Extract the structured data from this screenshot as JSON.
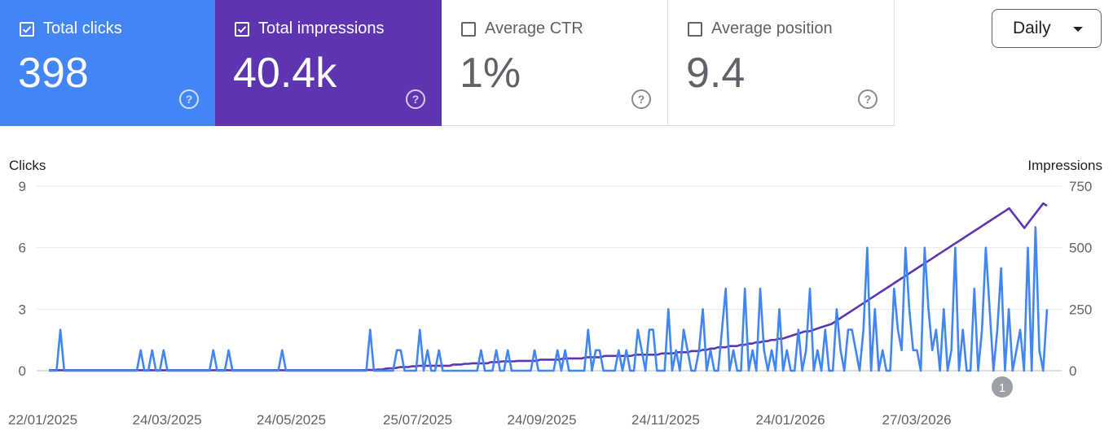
{
  "cards": [
    {
      "label": "Total clicks",
      "value": "398",
      "checked": true
    },
    {
      "label": "Total impressions",
      "value": "40.4k",
      "checked": true
    },
    {
      "label": "Average CTR",
      "value": "1%",
      "checked": false
    },
    {
      "label": "Average position",
      "value": "9.4",
      "checked": false
    }
  ],
  "help_symbol": "?",
  "granularity_select": {
    "value": "Daily"
  },
  "annotation": {
    "label": "1",
    "x": "2026-05-05"
  },
  "colors": {
    "clicks": "#4285f4",
    "impressions": "#5e35b1",
    "grid": "#e8eaed",
    "text": "#5f6368"
  },
  "chart_data": {
    "type": "line",
    "x_start": "2025-01-22",
    "x_end": "2026-05-27",
    "x_ticks": [
      "22/01/2025",
      "24/03/2025",
      "24/05/2025",
      "25/07/2025",
      "24/09/2025",
      "24/11/2025",
      "24/01/2026",
      "27/03/2026"
    ],
    "y_left": {
      "label": "Clicks",
      "ticks": [
        "0",
        "3",
        "6",
        "9"
      ],
      "lim": [
        0,
        9
      ]
    },
    "y_right": {
      "label": "Impressions",
      "ticks": [
        "0",
        "250",
        "500",
        "750"
      ],
      "lim": [
        0,
        750
      ]
    },
    "grid": true,
    "series": [
      {
        "name": "Clicks",
        "axis": "left",
        "sampling": "approximately every 3 days",
        "values": [
          0,
          0,
          0,
          2,
          0,
          0,
          0,
          0,
          0,
          0,
          0,
          0,
          0,
          0,
          0,
          0,
          0,
          0,
          0,
          0,
          0,
          0,
          0,
          0,
          1,
          0,
          0,
          1,
          0,
          0,
          1,
          0,
          0,
          0,
          0,
          0,
          0,
          0,
          0,
          0,
          0,
          0,
          0,
          1,
          0,
          0,
          0,
          1,
          0,
          0,
          0,
          0,
          0,
          0,
          0,
          0,
          0,
          0,
          0,
          0,
          0,
          1,
          0,
          0,
          0,
          0,
          0,
          0,
          0,
          0,
          0,
          0,
          0,
          0,
          0,
          0,
          0,
          0,
          0,
          0,
          0,
          0,
          0,
          0,
          2,
          0,
          0,
          0,
          0,
          0,
          0,
          1,
          1,
          0,
          0,
          0,
          0,
          2,
          0,
          1,
          0,
          0,
          1,
          0,
          0,
          0,
          0,
          0,
          0,
          0,
          0,
          0,
          0,
          1,
          0,
          0,
          0,
          1,
          0,
          0,
          1,
          0,
          0,
          0,
          0,
          0,
          0,
          1,
          0,
          0,
          0,
          0,
          0,
          1,
          0,
          1,
          0,
          0,
          0,
          0,
          0,
          2,
          0,
          1,
          1,
          0,
          0,
          0,
          0,
          1,
          0,
          1,
          0,
          0,
          2,
          1,
          0,
          2,
          2,
          0,
          0,
          0,
          3,
          0,
          1,
          0,
          2,
          1,
          0,
          0,
          1,
          3,
          0,
          1,
          0,
          0,
          2,
          4,
          0,
          1,
          0,
          0,
          4,
          0,
          1,
          0,
          4,
          1,
          0,
          1,
          0,
          3,
          0,
          1,
          0,
          0,
          2,
          0,
          1,
          4,
          0,
          1,
          0,
          2,
          0,
          0,
          3,
          1,
          0,
          2,
          2,
          1,
          0,
          2,
          6,
          0,
          3,
          0,
          1,
          0,
          0,
          4,
          2,
          1,
          6,
          3,
          1,
          1,
          0,
          6,
          3,
          1,
          2,
          0,
          3,
          0,
          1,
          6,
          0,
          2,
          0,
          0,
          4,
          0,
          2,
          6,
          3,
          0,
          2,
          5,
          0,
          3,
          0,
          1,
          2,
          0,
          6,
          0,
          7,
          1,
          0,
          3
        ]
      },
      {
        "name": "Impressions",
        "axis": "right",
        "sampling": "approximately every 3 days",
        "values": [
          2,
          2,
          2,
          2,
          2,
          2,
          2,
          2,
          2,
          2,
          2,
          2,
          2,
          2,
          2,
          2,
          2,
          2,
          2,
          2,
          2,
          2,
          2,
          2,
          2,
          2,
          2,
          2,
          2,
          2,
          2,
          2,
          2,
          2,
          2,
          2,
          2,
          2,
          2,
          2,
          2,
          2,
          2,
          2,
          2,
          2,
          2,
          2,
          2,
          2,
          2,
          2,
          2,
          2,
          2,
          2,
          2,
          2,
          2,
          2,
          2,
          2,
          2,
          2,
          2,
          2,
          2,
          2,
          2,
          2,
          2,
          2,
          2,
          2,
          2,
          2,
          2,
          2,
          2,
          2,
          2,
          2,
          2,
          2,
          3,
          3,
          3,
          5,
          5,
          8,
          10,
          10,
          12,
          15,
          15,
          15,
          18,
          18,
          20,
          20,
          20,
          20,
          20,
          20,
          20,
          20,
          20,
          25,
          25,
          25,
          28,
          28,
          30,
          30,
          30,
          30,
          30,
          35,
          35,
          35,
          38,
          38,
          38,
          38,
          40,
          40,
          40,
          40,
          40,
          40,
          45,
          45,
          45,
          45,
          45,
          45,
          50,
          50,
          50,
          50,
          50,
          50,
          55,
          55,
          55,
          55,
          55,
          60,
          60,
          60,
          60,
          60,
          60,
          60,
          60,
          65,
          65,
          65,
          65,
          65,
          65,
          65,
          70,
          70,
          70,
          70,
          75,
          75,
          75,
          75,
          80,
          80,
          80,
          85,
          85,
          90,
          90,
          95,
          95,
          95,
          100,
          100,
          100,
          105,
          105,
          110,
          110,
          115,
          115,
          120,
          120,
          125,
          125,
          130,
          130,
          135,
          140,
          145,
          150,
          155,
          160,
          160,
          165,
          170,
          175,
          180,
          185,
          190,
          200,
          210,
          220,
          230,
          240,
          250,
          260,
          270,
          280,
          290,
          300,
          310,
          320,
          330,
          340,
          350,
          360,
          370,
          380,
          390,
          400,
          410,
          420,
          430,
          440,
          450,
          460,
          470,
          480,
          490,
          500,
          510,
          520,
          530,
          540,
          550,
          560,
          570,
          580,
          590,
          600,
          610,
          620,
          630,
          640,
          650,
          660,
          640,
          620,
          600,
          580,
          600,
          620,
          640,
          660,
          680,
          670
        ]
      }
    ]
  }
}
